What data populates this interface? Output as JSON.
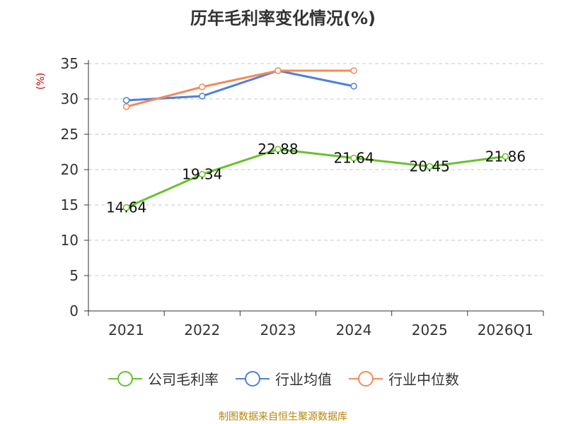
{
  "chart_data": {
    "type": "line",
    "title": "历年毛利率变化情况(%)",
    "ylabel": "(%)",
    "xlabel": "",
    "ylim": [
      0,
      35
    ],
    "yticks": [
      0,
      5,
      10,
      15,
      20,
      25,
      30,
      35
    ],
    "categories": [
      "2021",
      "2022",
      "2023",
      "2024",
      "2025",
      "2026Q1"
    ],
    "grid": true,
    "legend_position": "bottom",
    "series": [
      {
        "name": "公司毛利率",
        "color": "#66c22c",
        "values": [
          14.64,
          19.34,
          22.88,
          21.64,
          20.45,
          21.86
        ],
        "labels": [
          "14.64",
          "19.34",
          "22.88",
          "21.64",
          "20.45",
          "21.86"
        ]
      },
      {
        "name": "行业均值",
        "color": "#4f7fdb",
        "values": [
          29.8,
          30.4,
          34.0,
          31.8,
          null,
          null
        ]
      },
      {
        "name": "行业中位数",
        "color": "#f58b58",
        "values": [
          28.9,
          31.7,
          34.0,
          34.0,
          null,
          null
        ]
      }
    ]
  },
  "footer": {
    "source": "制图数据来自恒生聚源数据库"
  }
}
